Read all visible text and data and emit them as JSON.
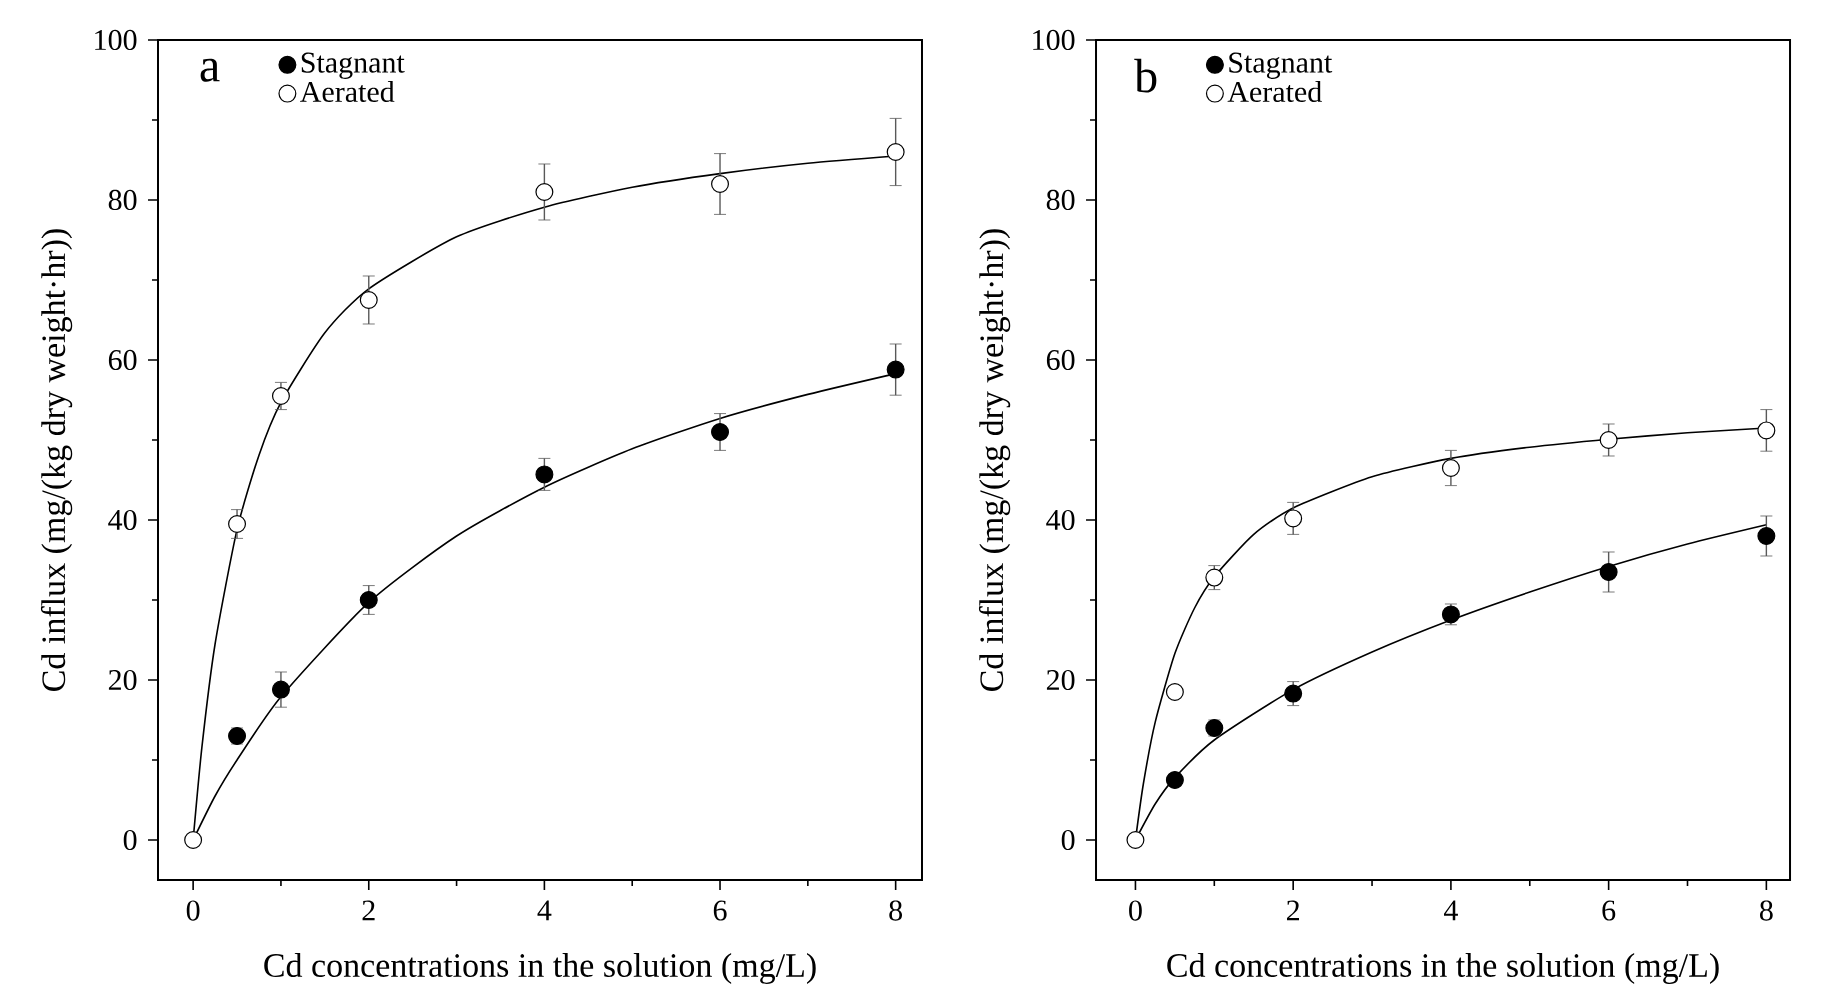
{
  "chart_data": [
    {
      "type": "scatter",
      "annotations": [
        "a"
      ],
      "xlabel": "Cd concentrations in the solution (mg/L)",
      "ylabel": "Cd influx (mg/(kg dry weight·hr))",
      "xlim": [
        -0.4,
        8.3
      ],
      "ylim": [
        -5,
        100
      ],
      "xticks": [
        0,
        2,
        4,
        6,
        8
      ],
      "yticks": [
        0,
        20,
        40,
        60,
        80,
        100
      ],
      "legend": "top left",
      "series": [
        {
          "type": "line",
          "marker": "none",
          "color": "#000000",
          "x": [
            0,
            0.25,
            0.5,
            1,
            2,
            3,
            4,
            5,
            6,
            7,
            8
          ],
          "values": [
            0,
            5.5,
            10,
            17.9,
            29.7,
            38,
            44.1,
            48.9,
            52.7,
            55.7,
            58.3
          ]
        },
        {
          "type": "line",
          "marker": "none",
          "color": "#000000",
          "x": [
            0,
            0.1,
            0.25,
            0.5,
            0.75,
            1,
            1.5,
            2,
            3,
            4,
            5,
            6,
            7,
            8
          ],
          "values": [
            0,
            11.6,
            24.5,
            38.8,
            48.1,
            54.7,
            63.4,
            68.9,
            75.4,
            79.1,
            81.6,
            83.3,
            84.6,
            85.5
          ]
        },
        {
          "name": "Stagnant",
          "marker": "circle",
          "color": "#000000",
          "x": [
            0.5,
            1,
            2,
            4,
            6,
            8
          ],
          "values": [
            13,
            18.8,
            30,
            45.7,
            51,
            58.8
          ],
          "errors": [
            1,
            2.2,
            1.8,
            2,
            2.3,
            3.2
          ]
        },
        {
          "name": "Aerated",
          "marker": "circle",
          "color": "#ffffff",
          "x": [
            0,
            0.5,
            1,
            2,
            4,
            6,
            8
          ],
          "values": [
            0,
            39.5,
            55.5,
            67.5,
            81,
            82,
            86
          ],
          "errors": [
            null,
            1.8,
            1.7,
            3,
            3.5,
            3.8,
            4.2
          ]
        }
      ]
    },
    {
      "type": "scatter",
      "annotations": [
        "b"
      ],
      "xlabel": "Cd concentrations in the solution (mg/L)",
      "ylabel": "Cd influx (mg/(kg dry weight·hr))",
      "xlim": [
        -0.5,
        8.3
      ],
      "ylim": [
        -5,
        100
      ],
      "xticks": [
        0,
        2,
        4,
        6,
        8
      ],
      "yticks": [
        0,
        20,
        40,
        60,
        80,
        100
      ],
      "legend": "top left",
      "series": [
        {
          "type": "line",
          "marker": "none",
          "color": "#000000",
          "x": [
            0,
            0.25,
            0.5,
            1,
            2,
            3,
            4,
            5,
            6,
            7,
            8
          ],
          "values": [
            0,
            4.5,
            7.8,
            12.5,
            18.8,
            23.5,
            27.5,
            31,
            34.2,
            37,
            39.4
          ]
        },
        {
          "type": "line",
          "marker": "none",
          "color": "#000000",
          "x": [
            0,
            0.1,
            0.25,
            0.5,
            0.75,
            1,
            1.5,
            2,
            3,
            4,
            5,
            6,
            7,
            8
          ],
          "values": [
            0,
            7,
            14.7,
            23.3,
            29,
            32.9,
            38.2,
            41.5,
            45.4,
            47.7,
            49.1,
            50.1,
            50.9,
            51.5
          ]
        },
        {
          "name": "Stagnant",
          "marker": "circle",
          "color": "#000000",
          "x": [
            0.5,
            1,
            2,
            4,
            6,
            8
          ],
          "values": [
            7.5,
            14,
            18.3,
            28.2,
            33.5,
            38
          ],
          "errors": [
            null,
            1,
            1.5,
            1.3,
            2.5,
            2.5
          ]
        },
        {
          "name": "Aerated",
          "marker": "circle",
          "color": "#ffffff",
          "x": [
            0,
            0.5,
            1,
            2,
            4,
            6,
            8
          ],
          "values": [
            0,
            18.5,
            32.8,
            40.2,
            46.5,
            50,
            51.2
          ],
          "errors": [
            null,
            null,
            1.5,
            2,
            2.2,
            2,
            2.6
          ]
        }
      ]
    }
  ]
}
